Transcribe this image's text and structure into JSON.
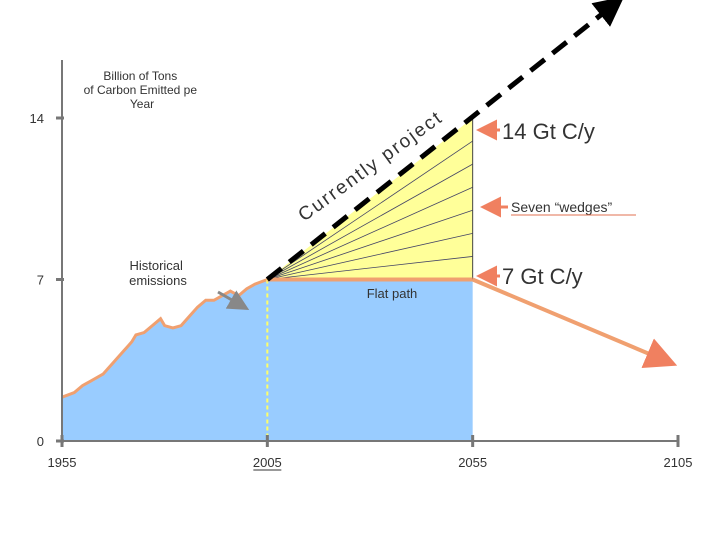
{
  "chart_data": {
    "type": "area",
    "ylabel": "Billion of Tons of Carbon Emitted per Year",
    "x_ticks": [
      1955,
      2005,
      2055,
      2105
    ],
    "y_ticks": [
      0,
      7,
      14
    ],
    "xlim": [
      1955,
      2105
    ],
    "ylim": [
      0,
      14
    ],
    "historical": {
      "name": "Historical emissions",
      "x": [
        1955,
        1958,
        1960,
        1962,
        1965,
        1967,
        1970,
        1972,
        1973,
        1975,
        1977,
        1979,
        1980,
        1982,
        1984,
        1986,
        1988,
        1990,
        1992,
        1994,
        1996,
        1998,
        2000,
        2002,
        2005
      ],
      "y": [
        1.9,
        2.1,
        2.4,
        2.6,
        2.9,
        3.3,
        3.9,
        4.3,
        4.6,
        4.7,
        5.0,
        5.3,
        5.0,
        4.9,
        5.0,
        5.4,
        5.8,
        6.1,
        6.1,
        6.3,
        6.5,
        6.3,
        6.6,
        6.8,
        7.0
      ]
    },
    "projected_path": {
      "label": "Currently projected path",
      "start": [
        2005,
        7
      ],
      "end": [
        2055,
        14
      ]
    },
    "dashed_extension": {
      "start": [
        2005,
        7
      ],
      "end": [
        2090,
        19
      ]
    },
    "flat_path": {
      "label": "Flat path",
      "start": [
        2005,
        7
      ],
      "end": [
        2055,
        7
      ]
    },
    "decline_path": {
      "start": [
        2055,
        7
      ],
      "end": [
        2103,
        3.4
      ]
    },
    "wedges": {
      "label": "Seven “wedges”",
      "count": 7
    },
    "annotations": {
      "top": "14 Gt C/y",
      "middle": "7 Gt C/y"
    },
    "colors": {
      "historical_fill": "#99ccff",
      "wedge_fill": "#ffff99",
      "flat_line": "#f0a070",
      "arrow": "#f08060",
      "dashed": "#000000",
      "vertical_marker": "#ffff66"
    }
  }
}
